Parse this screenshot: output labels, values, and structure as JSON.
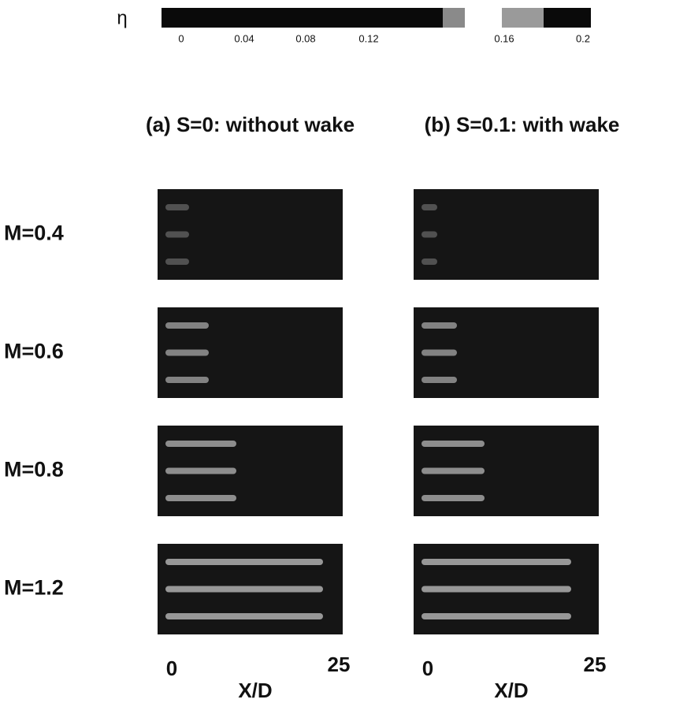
{
  "colorbar": {
    "label": "η",
    "ticks": [
      "0",
      "0.04",
      "0.08",
      "0.12",
      "0.16",
      "0.2"
    ]
  },
  "columns": [
    "(a) S=0: without wake",
    "(b) S=0.1: with wake"
  ],
  "rows": [
    "M=0.4",
    "M=0.6",
    "M=0.8",
    "M=1.2"
  ],
  "axes": [
    {
      "start": "0",
      "end": "25",
      "label": "X/D"
    },
    {
      "start": "0",
      "end": "25",
      "label": "X/D"
    }
  ]
}
